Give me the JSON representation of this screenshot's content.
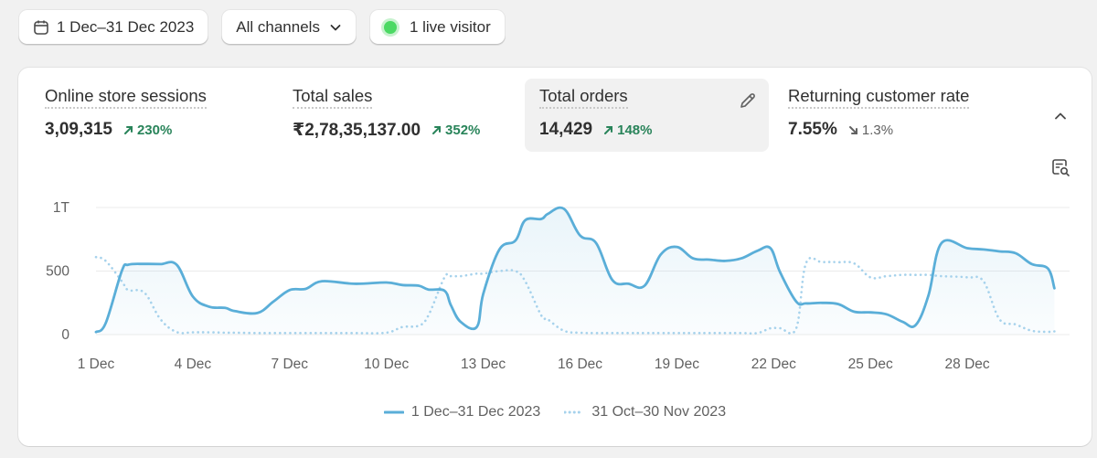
{
  "toolbar": {
    "date_range": "1 Dec–31 Dec 2023",
    "channel": "All channels",
    "live_visitor": "1 live visitor"
  },
  "metrics": [
    {
      "title": "Online store sessions",
      "value": "3,09,315",
      "delta": "230%",
      "direction": "up"
    },
    {
      "title": "Total sales",
      "value": "₹2,78,35,137.00",
      "delta": "352%",
      "direction": "up"
    },
    {
      "title": "Total orders",
      "value": "14,429",
      "delta": "148%",
      "direction": "up",
      "selected": true
    },
    {
      "title": "Returning customer rate",
      "value": "7.55%",
      "delta": "1.3%",
      "direction": "down"
    }
  ],
  "colors": {
    "primary_series": "#5aaed8",
    "comparison_series": "#a6d2ec",
    "positive": "#29845a",
    "live_dot": "#4cd964"
  },
  "icons": {
    "date": "calendar-icon",
    "channel": "chevron-down-icon",
    "edit": "pencil-icon",
    "collapse": "chevron-up-icon",
    "explore": "search-report-icon"
  },
  "chart_data": {
    "type": "line",
    "y_ticks": [
      "0",
      "500",
      "1T"
    ],
    "ylim": [
      0,
      1000
    ],
    "x_ticks": [
      {
        "label": "1 Dec",
        "day": 1
      },
      {
        "label": "4 Dec",
        "day": 4
      },
      {
        "label": "7 Dec",
        "day": 7
      },
      {
        "label": "10 Dec",
        "day": 10
      },
      {
        "label": "13 Dec",
        "day": 13
      },
      {
        "label": "16 Dec",
        "day": 16
      },
      {
        "label": "19 Dec",
        "day": 19
      },
      {
        "label": "22 Dec",
        "day": 22
      },
      {
        "label": "25 Dec",
        "day": 25
      },
      {
        "label": "28 Dec",
        "day": 28
      }
    ],
    "x": [
      1,
      1.3,
      1.8,
      2,
      2.5,
      3,
      3.5,
      4,
      4.5,
      5,
      5.3,
      6,
      6.5,
      7,
      7.5,
      8,
      9,
      10,
      10.5,
      11,
      11.3,
      11.8,
      12,
      12.3,
      12.8,
      13,
      13.5,
      14,
      14.3,
      14.8,
      15,
      15.5,
      16,
      16.5,
      17,
      17.5,
      18,
      18.5,
      19,
      19.5,
      20,
      20.5,
      21,
      21.5,
      21.9,
      22.2,
      22.7,
      23,
      23.5,
      24,
      24.5,
      25,
      25.5,
      26,
      26.4,
      26.8,
      27.2,
      28,
      28.5,
      29,
      29.5,
      30,
      30.5,
      30.7
    ],
    "grid": true,
    "series": [
      {
        "name": "1 Dec–31 Dec 2023",
        "style": "solid",
        "values": [
          20,
          90,
          500,
          550,
          556,
          555,
          550,
          300,
          220,
          210,
          185,
          170,
          260,
          350,
          360,
          420,
          400,
          410,
          390,
          385,
          355,
          345,
          230,
          100,
          60,
          320,
          670,
          740,
          900,
          910,
          950,
          990,
          780,
          720,
          430,
          400,
          385,
          630,
          690,
          600,
          590,
          580,
          600,
          660,
          680,
          490,
          260,
          245,
          250,
          240,
          180,
          175,
          160,
          100,
          75,
          310,
          720,
          680,
          670,
          655,
          640,
          555,
          520,
          365
        ]
      },
      {
        "name": "31 Oct–30 Nov 2023",
        "style": "dotted",
        "values": [
          610,
          580,
          420,
          350,
          330,
          120,
          20,
          18,
          18,
          15,
          15,
          12,
          12,
          12,
          12,
          12,
          12,
          15,
          60,
          70,
          150,
          450,
          460,
          460,
          480,
          480,
          500,
          500,
          420,
          150,
          120,
          30,
          15,
          12,
          12,
          12,
          12,
          12,
          12,
          12,
          12,
          12,
          12,
          12,
          50,
          50,
          50,
          560,
          570,
          570,
          560,
          450,
          460,
          470,
          470,
          470,
          460,
          450,
          420,
          120,
          80,
          30,
          22,
          25
        ]
      }
    ]
  }
}
